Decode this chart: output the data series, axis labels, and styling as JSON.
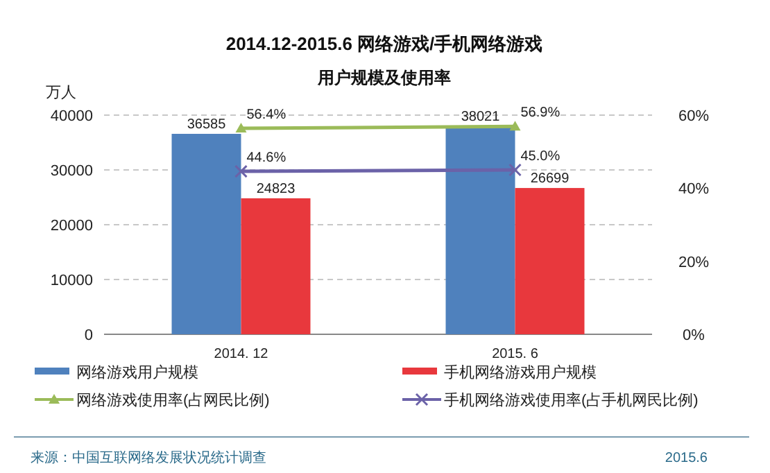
{
  "chart_data": {
    "type": "bar",
    "title": "2014.12-2015.6 网络游戏/手机网络游戏",
    "subtitle": "用户规模及使用率",
    "ylabel": "万人",
    "categories": [
      "2014. 12",
      "2015. 6"
    ],
    "series": [
      {
        "name": "网络游戏用户规模",
        "color": "#4f81bd",
        "values": [
          36585,
          38021
        ],
        "value_labels": [
          "36585",
          "38021"
        ]
      },
      {
        "name": "手机网络游戏用户规模",
        "color": "#e8383d",
        "values": [
          24823,
          26699
        ],
        "value_labels": [
          "24823",
          "26699"
        ]
      },
      {
        "name": "网络游戏使用率(占网民比例)",
        "type": "line",
        "axis": "y2",
        "marker": "triangle",
        "color": "#9bbb59",
        "values": [
          56.4,
          56.9
        ],
        "value_labels": [
          "56.4%",
          "56.9%"
        ]
      },
      {
        "name": "手机网络游戏使用率(占手机网民比例)",
        "type": "line",
        "axis": "y2",
        "marker": "cross",
        "color": "#6b62a8",
        "values": [
          44.6,
          45.0
        ],
        "value_labels": [
          "44.6%",
          "45.0%"
        ]
      }
    ],
    "ylim": [
      0,
      40000
    ],
    "yticks": [
      0,
      10000,
      20000,
      30000,
      40000
    ],
    "y2lim": [
      0,
      60
    ],
    "y2ticks": [
      {
        "value": 0,
        "label": "0%"
      },
      {
        "value": 20,
        "label": "20%"
      },
      {
        "value": 40,
        "label": "40%"
      },
      {
        "value": 60,
        "label": "60%"
      }
    ],
    "grid": "y",
    "legend": "bottom",
    "annotations": [
      "来源：中国互联网络发展状况统计调查",
      "2015.6"
    ]
  }
}
